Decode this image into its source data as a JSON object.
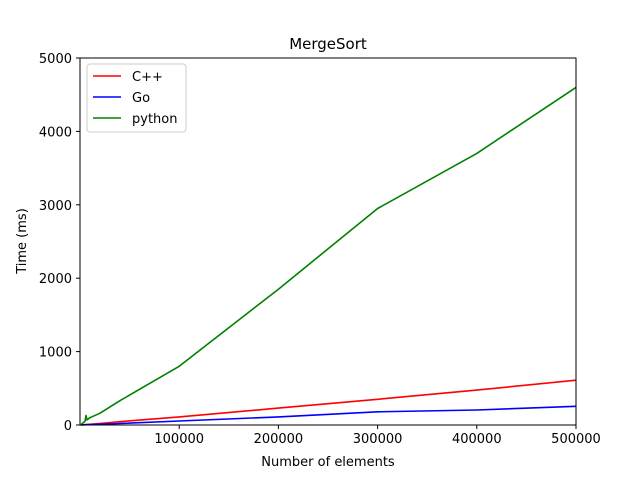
{
  "chart_data": {
    "type": "line",
    "title": "MergeSort",
    "xlabel": "Number of elements",
    "ylabel": "Time (ms)",
    "xlim": [
      0,
      500000
    ],
    "ylim": [
      0,
      5000
    ],
    "xticks": [
      100000,
      200000,
      300000,
      400000,
      500000
    ],
    "yticks": [
      0,
      1000,
      2000,
      3000,
      4000,
      5000
    ],
    "grid": false,
    "legend_position": "top-left",
    "series": [
      {
        "name": "C++",
        "color": "#ff0000",
        "x": [
          1000,
          10000,
          20000,
          40000,
          100000,
          200000,
          300000,
          400000,
          500000
        ],
        "y": [
          1,
          10,
          20,
          45,
          110,
          230,
          350,
          475,
          610
        ]
      },
      {
        "name": "Go",
        "color": "#0000ff",
        "x": [
          1000,
          10000,
          20000,
          40000,
          100000,
          200000,
          300000,
          400000,
          500000
        ],
        "y": [
          1,
          5,
          10,
          20,
          55,
          110,
          180,
          205,
          255
        ]
      },
      {
        "name": "python",
        "color": "#008000",
        "x": [
          1000,
          5000,
          6000,
          7000,
          10000,
          20000,
          40000,
          100000,
          200000,
          300000,
          400000,
          500000
        ],
        "y": [
          5,
          50,
          130,
          70,
          100,
          160,
          330,
          800,
          1850,
          2950,
          3700,
          4600
        ]
      }
    ]
  }
}
